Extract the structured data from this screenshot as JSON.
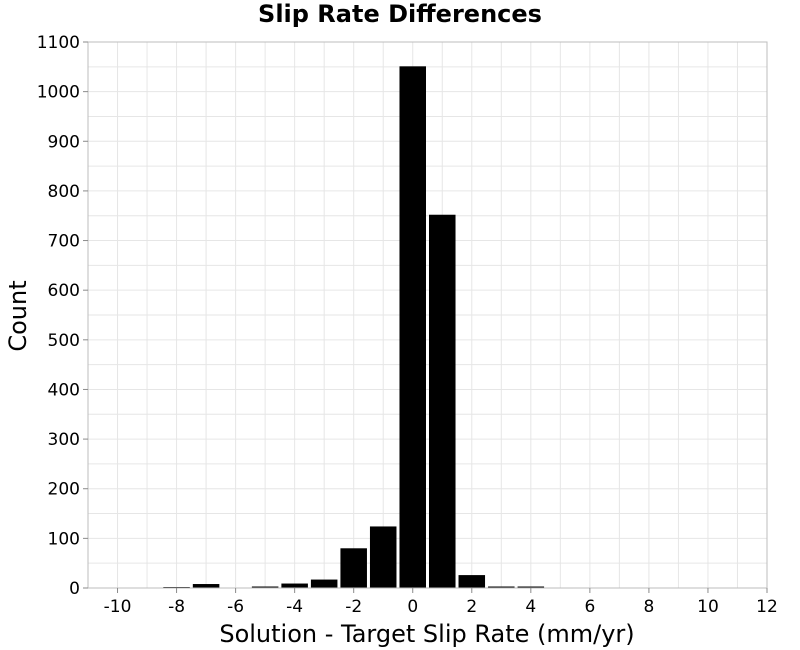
{
  "chart_data": {
    "type": "bar",
    "title": "Slip Rate Differences",
    "xlabel": "Solution - Target Slip Rate (mm/yr)",
    "ylabel": "Count",
    "xlim": [
      -11,
      12
    ],
    "ylim": [
      0,
      1100
    ],
    "bin_width": 1,
    "xticks": [
      -10,
      -8,
      -6,
      -4,
      -2,
      0,
      2,
      4,
      6,
      8,
      10,
      12
    ],
    "xtick_labels": [
      "-10",
      "-8",
      "-6",
      "-4",
      "-2",
      "0",
      "2",
      "4",
      "6",
      "8",
      "10",
      "12"
    ],
    "yticks": [
      0,
      100,
      200,
      300,
      400,
      500,
      600,
      700,
      800,
      900,
      1000,
      1100
    ],
    "ytick_labels": [
      "0",
      "100",
      "200",
      "300",
      "400",
      "500",
      "600",
      "700",
      "800",
      "900",
      "1000",
      "1100"
    ],
    "bins": [
      {
        "x": -10,
        "count": 0
      },
      {
        "x": -9,
        "count": 0
      },
      {
        "x": -8,
        "count": 2
      },
      {
        "x": -7,
        "count": 8
      },
      {
        "x": -6,
        "count": 0
      },
      {
        "x": -5,
        "count": 3
      },
      {
        "x": -4,
        "count": 9
      },
      {
        "x": -3,
        "count": 17
      },
      {
        "x": -2,
        "count": 80
      },
      {
        "x": -1,
        "count": 124
      },
      {
        "x": 0,
        "count": 1051
      },
      {
        "x": 1,
        "count": 752
      },
      {
        "x": 2,
        "count": 26
      },
      {
        "x": 3,
        "count": 3
      },
      {
        "x": 4,
        "count": 3
      },
      {
        "x": 5,
        "count": 1
      }
    ],
    "grid": true,
    "bar_color": "#000000"
  }
}
